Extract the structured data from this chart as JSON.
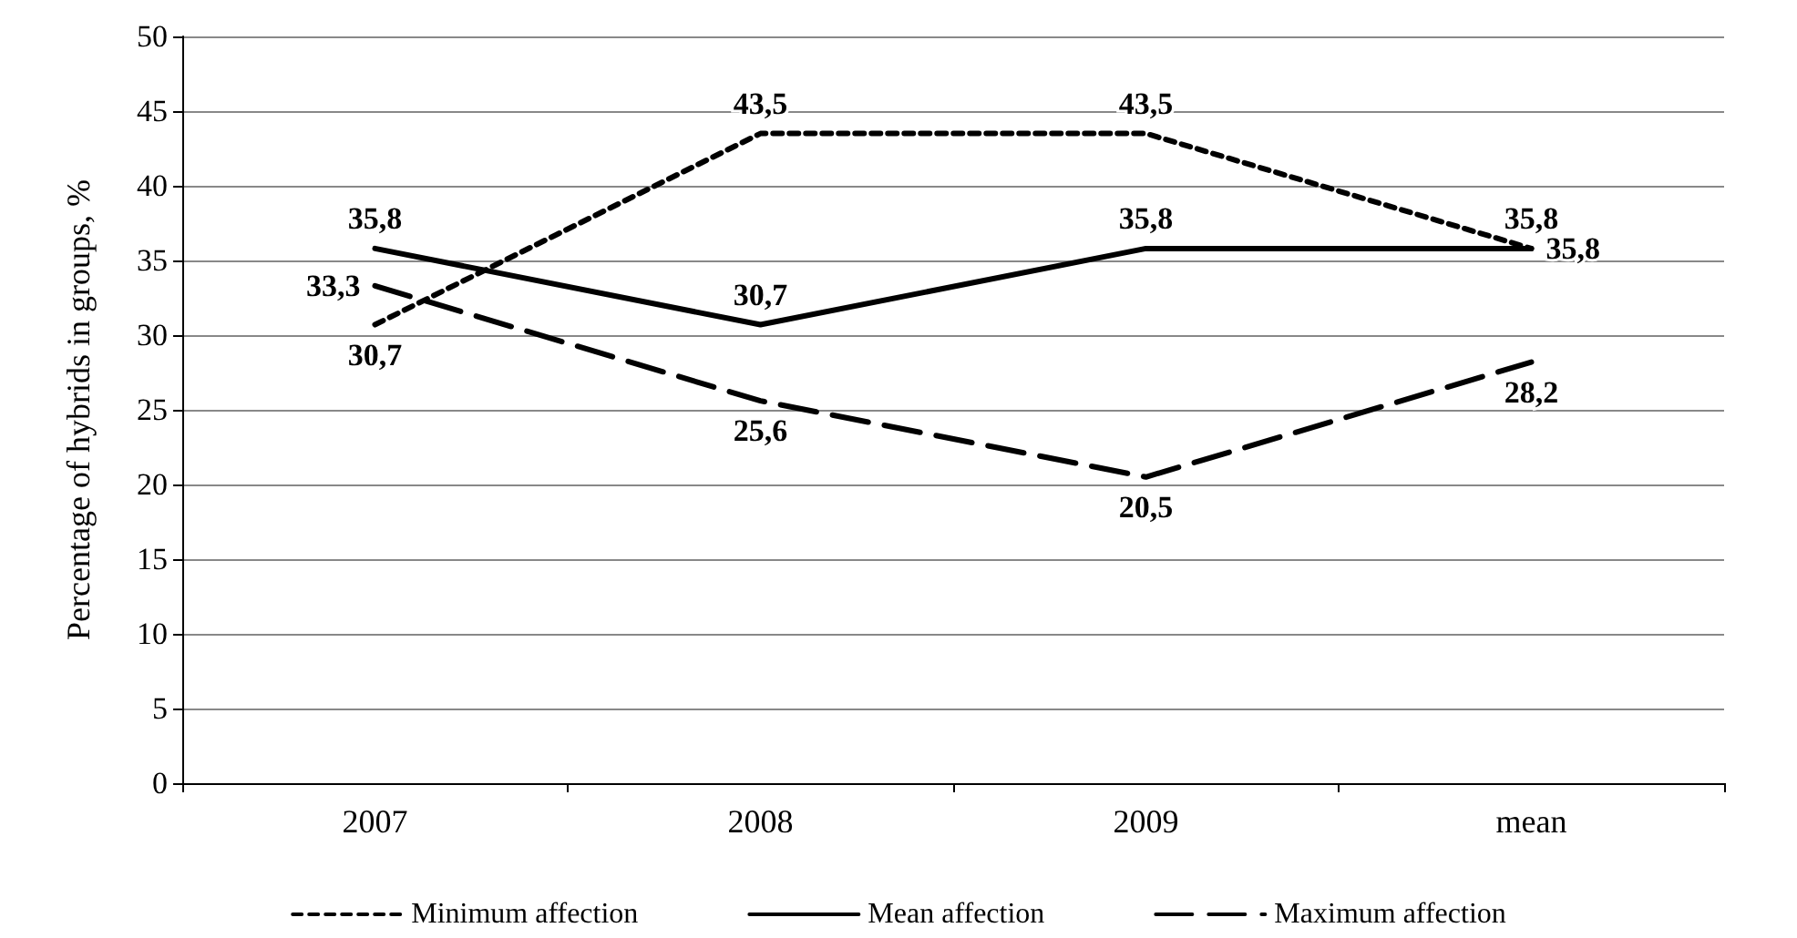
{
  "chart_data": {
    "type": "line",
    "ylabel": "Percentage of hybrids in groups, %",
    "categories": [
      "2007",
      "2008",
      "2009",
      "mean"
    ],
    "series": [
      {
        "name": "Minimum affection",
        "color": "#000000",
        "line_style": "dotted",
        "values": [
          30.7,
          43.5,
          43.5,
          35.8
        ],
        "value_labels": [
          "30,7",
          "43,5",
          "43,5",
          "35,8"
        ]
      },
      {
        "name": "Mean affection",
        "color": "#000000",
        "line_style": "solid",
        "values": [
          35.8,
          30.7,
          35.8,
          35.8
        ],
        "value_labels": [
          "35,8",
          "30,7",
          "35,8",
          "35,8"
        ]
      },
      {
        "name": "Maximum affection",
        "color": "#000000",
        "line_style": "dashed",
        "values": [
          33.3,
          25.6,
          20.5,
          28.2
        ],
        "value_labels": [
          "33,3",
          "25,6",
          "20,5",
          "28,2"
        ]
      }
    ],
    "ylim": [
      0,
      50
    ],
    "yticks": [
      0,
      5,
      10,
      15,
      20,
      25,
      30,
      35,
      40,
      45,
      50
    ],
    "grid": "y",
    "legend": "bottom",
    "marker": "none"
  }
}
